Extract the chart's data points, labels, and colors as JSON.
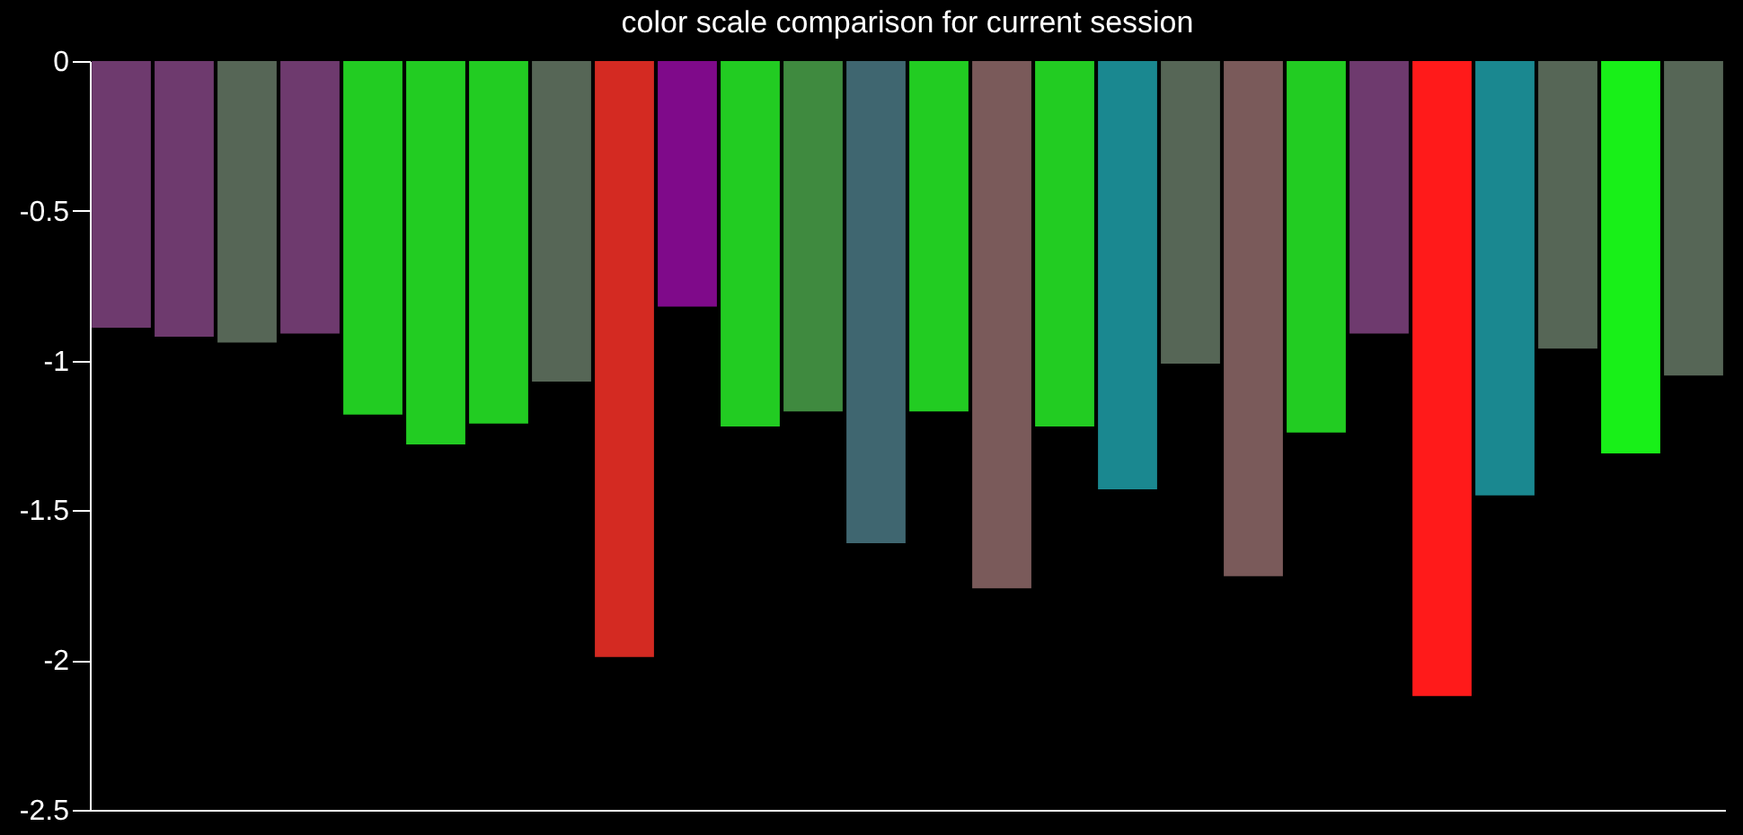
{
  "chart_data": {
    "type": "bar",
    "title": "color scale comparison for current session",
    "categories": [
      null,
      null,
      null,
      null,
      null,
      null,
      null,
      null,
      null,
      null,
      null,
      null,
      null,
      null,
      null,
      null,
      null,
      null,
      null,
      null,
      null,
      null,
      null,
      null,
      null,
      null
    ],
    "values": [
      -0.89,
      -0.92,
      -0.94,
      -0.91,
      -1.18,
      -1.28,
      -1.21,
      -1.07,
      -1.99,
      -0.82,
      -1.22,
      -1.17,
      -1.61,
      -1.17,
      -1.76,
      -1.22,
      -1.43,
      -1.01,
      -1.72,
      -1.24,
      -0.91,
      -2.12,
      -1.45,
      -0.96,
      -1.31,
      -1.05
    ],
    "colors": [
      "#6e3a6e",
      "#6e3a6e",
      "#566656",
      "#6e3a6e",
      "#22cc22",
      "#22cc22",
      "#22cc22",
      "#566656",
      "#d42a22",
      "#7f0a8a",
      "#22cc22",
      "#3f8a3f",
      "#3f6670",
      "#22cc22",
      "#7a5a5a",
      "#22cc22",
      "#1a8890",
      "#566656",
      "#7a5a5a",
      "#22cc22",
      "#6e3a6e",
      "#ff1a1a",
      "#1a8890",
      "#566656",
      "#18f018",
      "#566656"
    ],
    "ylim": [
      -2.5,
      0
    ],
    "yticks": [
      0,
      -0.5,
      -1,
      -1.5,
      -2,
      -2.5
    ],
    "grid": false
  }
}
